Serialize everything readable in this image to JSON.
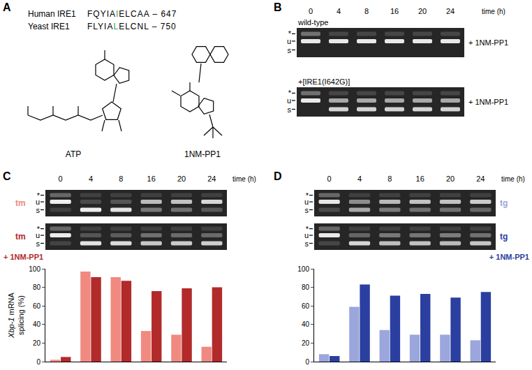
{
  "panels": {
    "A": {
      "letter": "A",
      "alignment": [
        {
          "species": "Human IRE1",
          "before": "FQYIA",
          "residue": "I",
          "after": "ELCAA",
          "end": "– 647"
        },
        {
          "species": "Yeast IRE1",
          "before": "FLYIA",
          "residue": "L",
          "after": "ELCNL",
          "end": "– 750"
        }
      ],
      "compounds": [
        "ATP",
        "1NM-PP1"
      ]
    },
    "B": {
      "letter": "B",
      "times": [
        "0",
        "4",
        "8",
        "16",
        "20",
        "24"
      ],
      "time_label": "time (h)",
      "band_labels": [
        "*",
        "u",
        "s"
      ],
      "gels": [
        {
          "label": "wild-type",
          "treatment": "+ 1NM-PP1",
          "lanes": [
            "u",
            "u",
            "u",
            "u",
            "u",
            "u"
          ]
        },
        {
          "label": "+[IRE1(I642G)]",
          "treatment": "+ 1NM-PP1",
          "lanes": [
            "u",
            "us",
            "us",
            "us",
            "us",
            "us"
          ]
        }
      ]
    },
    "C": {
      "letter": "C",
      "time_label": "time (h)",
      "band_labels": [
        "*",
        "u",
        "s"
      ]
    },
    "D": {
      "letter": "D",
      "time_label": "time (h)",
      "band_labels": [
        "*",
        "u",
        "s"
      ]
    }
  },
  "chart_data": [
    {
      "type": "bar",
      "categories": [
        "0",
        "4",
        "8",
        "16",
        "20",
        "24"
      ],
      "ylabel": "Xbp-1 mRNA splicing (%)",
      "ylim": [
        0,
        100
      ],
      "yticks": [
        0,
        20,
        40,
        60,
        80,
        100
      ],
      "tick_labels": "y",
      "series": [
        {
          "name": "tm",
          "color": "#f08a80",
          "values": [
            2,
            97,
            91,
            33,
            29,
            16
          ]
        },
        {
          "name": "tm + 1NM-PP1",
          "color": "#b22a2a",
          "values": [
            5,
            91,
            87,
            76,
            79,
            80
          ]
        }
      ]
    },
    {
      "type": "bar",
      "categories": [
        "0",
        "4",
        "8",
        "16",
        "20",
        "24"
      ],
      "ylim": [
        0,
        100
      ],
      "yticks": [
        0,
        20,
        40,
        60,
        80,
        100
      ],
      "tick_labels": "y",
      "series": [
        {
          "name": "tg",
          "color": "#9aa6dc",
          "values": [
            8,
            59,
            34,
            29,
            29,
            23
          ]
        },
        {
          "name": "tg + 1NM-PP1",
          "color": "#2a3fa0",
          "values": [
            6,
            83,
            71,
            73,
            69,
            75
          ]
        }
      ]
    }
  ]
}
